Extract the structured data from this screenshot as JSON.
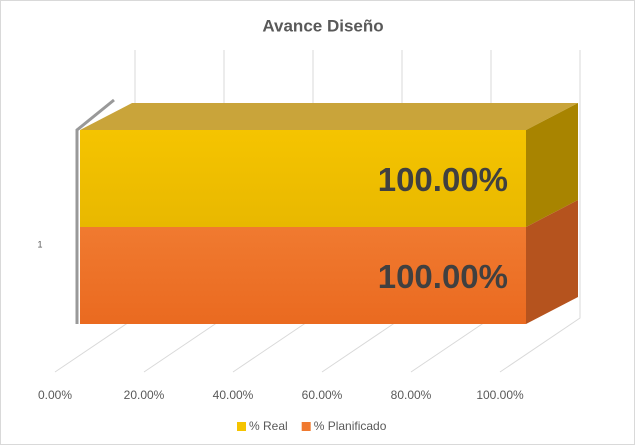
{
  "chart_data": {
    "type": "bar3d",
    "orientation": "horizontal",
    "title": "Avance Diseño",
    "categories": [
      "1"
    ],
    "series": [
      {
        "name": "% Real",
        "color": "#f5c400",
        "values": [
          100
        ],
        "value_labels": [
          "100.00%"
        ]
      },
      {
        "name": "% Planificado",
        "color": "#f07a30",
        "values": [
          100
        ],
        "value_labels": [
          "100.00%"
        ]
      }
    ],
    "xlim": [
      0,
      100
    ],
    "xticks": [
      {
        "value": 0,
        "label": "0.00%"
      },
      {
        "value": 20,
        "label": "20.00%"
      },
      {
        "value": 40,
        "label": "40.00%"
      },
      {
        "value": 60,
        "label": "60.00%"
      },
      {
        "value": 80,
        "label": "80.00%"
      },
      {
        "value": 100,
        "label": "100.00%"
      }
    ],
    "grid": true,
    "legend": "bottom"
  }
}
